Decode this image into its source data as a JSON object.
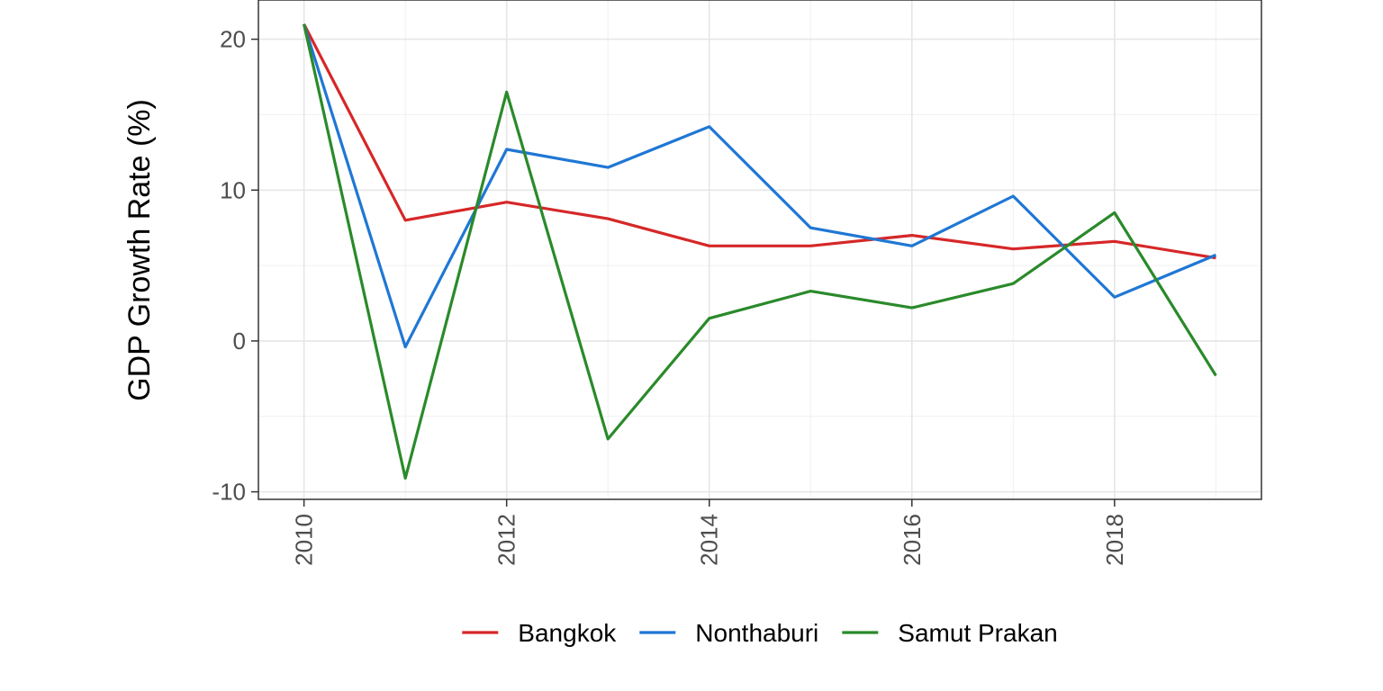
{
  "chart_data": {
    "type": "line",
    "title": "",
    "xlabel": "",
    "ylabel": "GDP Growth Rate (%)",
    "x": [
      2010,
      2011,
      2012,
      2013,
      2014,
      2015,
      2016,
      2017,
      2018,
      2019
    ],
    "xlim": [
      2009.55,
      2019.45
    ],
    "ylim": [
      -10.5,
      22.6
    ],
    "x_ticks": [
      2010,
      2012,
      2014,
      2016,
      2018
    ],
    "x_tick_labels": [
      "2010",
      "2012",
      "2014",
      "2016",
      "2018"
    ],
    "y_ticks": [
      -10,
      0,
      10,
      20
    ],
    "y_tick_labels": [
      "-10",
      "0",
      "10",
      "20"
    ],
    "grid": true,
    "legend_position": "bottom",
    "series": [
      {
        "name": "Bangkok",
        "color": "#d62728",
        "values": [
          21.0,
          8.0,
          9.2,
          8.1,
          6.3,
          6.3,
          7.0,
          6.1,
          6.6,
          5.5
        ]
      },
      {
        "name": "Nonthaburi",
        "color": "#1f77d4",
        "values": [
          21.0,
          -0.4,
          12.7,
          11.5,
          14.2,
          7.5,
          6.3,
          9.6,
          2.9,
          5.7
        ]
      },
      {
        "name": "Samut Prakan",
        "color": "#2a8a2a",
        "values": [
          21.0,
          -9.1,
          16.5,
          -6.5,
          1.5,
          3.3,
          2.2,
          3.8,
          8.5,
          -2.3
        ]
      }
    ]
  }
}
